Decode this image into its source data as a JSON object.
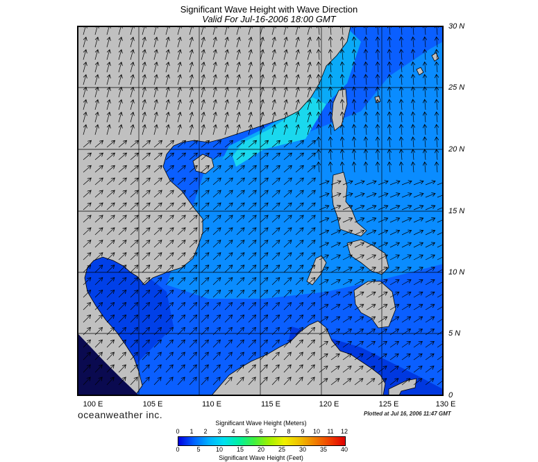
{
  "title": "Significant Wave Height with Wave Direction",
  "subtitle": "Valid For Jul-16-2006 18:00 GMT",
  "map": {
    "lon_range": [
      100,
      130
    ],
    "lat_range": [
      0,
      30
    ],
    "lon_labels": [
      "100 E",
      "105 E",
      "110 E",
      "115 E",
      "120 E",
      "125 E",
      "130 E"
    ],
    "lat_labels": [
      "30 N",
      "25 N",
      "20 N",
      "15 N",
      "10 N",
      "5 N",
      "0"
    ],
    "land_color": "#c0c0c0",
    "grid": true
  },
  "branding": "oceanweather inc.",
  "plotted": "Plotted at Jul 16, 2006 11:47 GMT",
  "colorbar": {
    "top_title": "Significant Wave Height (Meters)",
    "bottom_title": "Significant Wave Height (Feet)",
    "meters": [
      "0",
      "1",
      "2",
      "3",
      "4",
      "5",
      "6",
      "7",
      "8",
      "9",
      "10",
      "11",
      "12"
    ],
    "feet": [
      "0",
      "5",
      "10",
      "15",
      "20",
      "25",
      "30",
      "35",
      "40"
    ],
    "colors": [
      "#0000e0",
      "#0060ff",
      "#00b0ff",
      "#00e0f0",
      "#00f0a0",
      "#40f040",
      "#a0f000",
      "#f0f000",
      "#f0c000",
      "#f08000",
      "#f04000",
      "#e00000"
    ]
  }
}
